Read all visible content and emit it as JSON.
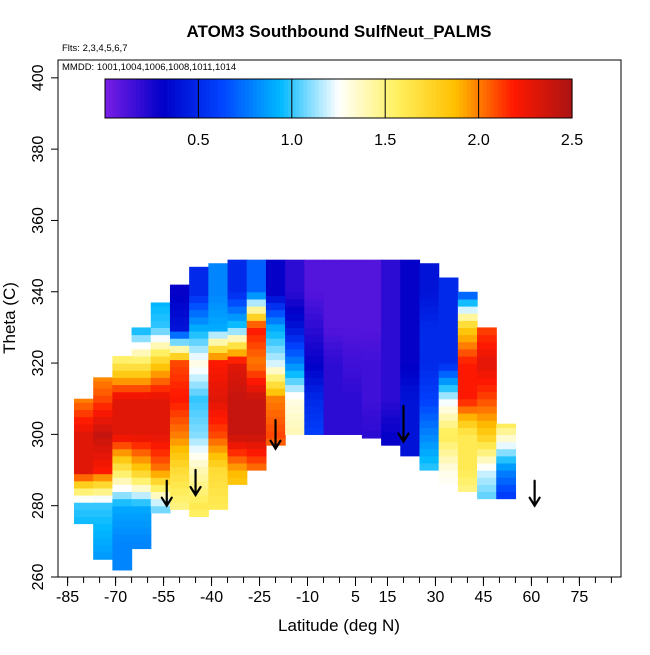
{
  "chart_data": {
    "type": "heatmap",
    "title": "ATOM3 Southbound SulfNeut_PALMS",
    "flights_note": "Flts: 2,3,4,5,6,7",
    "dates_note": "MMDD: 1001,1004,1006,1008,1011,1014",
    "xlabel": "Latitude (deg N)",
    "ylabel": "Theta (C)",
    "xlim": [
      -88,
      88
    ],
    "ylim": [
      260,
      405
    ],
    "x_ticks": [
      -85,
      -70,
      -55,
      -40,
      -25,
      -10,
      5,
      15,
      30,
      45,
      60,
      75
    ],
    "y_ticks": [
      260,
      280,
      300,
      320,
      340,
      360,
      380,
      400
    ],
    "colorbar": {
      "range": [
        0,
        2.5
      ],
      "ticks": [
        0.5,
        1.0,
        1.5,
        2.0,
        2.5
      ],
      "tick_labels": [
        "0.5",
        "1.0",
        "1.5",
        "2.0",
        "2.5"
      ],
      "colors": [
        "#7a1ee6",
        "#0000c8",
        "#0044ff",
        "#00b8ff",
        "#ffffff",
        "#fff060",
        "#ffc000",
        "#ff1800",
        "#aa1414"
      ]
    },
    "arrows_latitude": [
      -54,
      -45,
      -20,
      20,
      61
    ],
    "arrows_theta": [
      [
        287,
        280
      ],
      [
        290,
        283
      ],
      [
        304,
        296
      ],
      [
        308,
        298
      ],
      [
        287,
        280
      ]
    ],
    "field": {
      "lat_edges": [
        -83,
        -77,
        -71,
        -65,
        -59,
        -53,
        -47,
        -41,
        -35,
        -29,
        -23,
        -17,
        -11,
        -5,
        1,
        7,
        13,
        19,
        25,
        31,
        37,
        43,
        49,
        55
      ],
      "bottom_theta": [
        275,
        265,
        262,
        268,
        278,
        279,
        277,
        279,
        286,
        290,
        297,
        300,
        300,
        300,
        300,
        299,
        297,
        294,
        290,
        286,
        284,
        282,
        282
      ],
      "top_theta": [
        310,
        316,
        322,
        330,
        337,
        342,
        347,
        348,
        349,
        349,
        349,
        349,
        349,
        349,
        349,
        349,
        349,
        349,
        348,
        344,
        340,
        330,
        303
      ],
      "value_nodes_theta": [
        260,
        270,
        280,
        290,
        300,
        310,
        320,
        330,
        340,
        350
      ],
      "values": [
        [
          0.9,
          0.9,
          1.0,
          2.3,
          2.3,
          2.0,
          2.0,
          2.0,
          2.0,
          2.0
        ],
        [
          0.8,
          0.9,
          1.0,
          2.2,
          2.4,
          2.1,
          1.9,
          1.9,
          1.9,
          1.9
        ],
        [
          0.8,
          0.8,
          0.9,
          1.6,
          2.3,
          2.3,
          1.6,
          1.0,
          1.0,
          1.0
        ],
        [
          0.8,
          0.8,
          0.9,
          1.8,
          2.3,
          2.3,
          1.6,
          0.9,
          0.9,
          0.9
        ],
        [
          0.9,
          0.9,
          1.1,
          2.0,
          2.3,
          2.3,
          1.8,
          1.0,
          0.9,
          0.9
        ],
        [
          1.3,
          1.3,
          1.5,
          1.7,
          2.0,
          2.2,
          2.1,
          0.4,
          0.3,
          0.3
        ],
        [
          1.4,
          1.4,
          1.6,
          1.4,
          1.1,
          1.0,
          1.3,
          0.9,
          0.5,
          0.5
        ],
        [
          1.6,
          1.6,
          1.6,
          1.7,
          2.1,
          2.3,
          2.2,
          0.9,
          0.8,
          0.8
        ],
        [
          1.7,
          1.7,
          1.7,
          1.9,
          2.4,
          2.4,
          2.3,
          1.0,
          0.5,
          0.5
        ],
        [
          1.7,
          1.7,
          1.7,
          2.0,
          2.4,
          2.4,
          2.0,
          2.2,
          0.7,
          0.7
        ],
        [
          1.7,
          1.7,
          1.7,
          1.9,
          2.1,
          2.0,
          1.2,
          0.9,
          0.3,
          0.3
        ],
        [
          1.5,
          1.5,
          1.5,
          1.6,
          1.4,
          1.3,
          0.8,
          0.4,
          0.2,
          0.2
        ],
        [
          0.5,
          0.5,
          0.5,
          0.5,
          0.6,
          0.5,
          0.3,
          0.2,
          0.1,
          0.1
        ],
        [
          0.4,
          0.4,
          0.4,
          0.4,
          0.2,
          0.2,
          0.2,
          0.1,
          0.1,
          0.1
        ],
        [
          0.3,
          0.3,
          0.3,
          0.3,
          0.2,
          0.2,
          0.15,
          0.1,
          0.1,
          0.1
        ],
        [
          0.3,
          0.3,
          0.3,
          0.3,
          0.2,
          0.15,
          0.15,
          0.1,
          0.1,
          0.1
        ],
        [
          0.3,
          0.3,
          0.3,
          0.3,
          0.3,
          0.2,
          0.2,
          0.2,
          0.2,
          0.2
        ],
        [
          0.4,
          0.4,
          0.4,
          0.4,
          0.4,
          0.4,
          0.3,
          0.3,
          0.3,
          0.3
        ],
        [
          1.0,
          1.0,
          1.0,
          1.0,
          0.8,
          0.6,
          0.5,
          0.5,
          0.4,
          0.4
        ],
        [
          1.2,
          1.2,
          1.2,
          1.3,
          1.6,
          1.2,
          0.5,
          0.5,
          0.5,
          0.5
        ],
        [
          1.4,
          1.4,
          1.4,
          1.6,
          1.6,
          2.2,
          2.2,
          1.8,
          0.6,
          0.6
        ],
        [
          1.0,
          1.0,
          1.0,
          1.2,
          1.8,
          2.1,
          2.3,
          2.1,
          1.1,
          1.1
        ],
        [
          0.5,
          0.5,
          0.5,
          0.8,
          1.4,
          2.0,
          2.3,
          2.2,
          1.6,
          1.6
        ],
        [
          0.6,
          0.6,
          0.6,
          0.6,
          1.0,
          2.0,
          2.2,
          2.2,
          1.6,
          1.6
        ]
      ]
    }
  }
}
